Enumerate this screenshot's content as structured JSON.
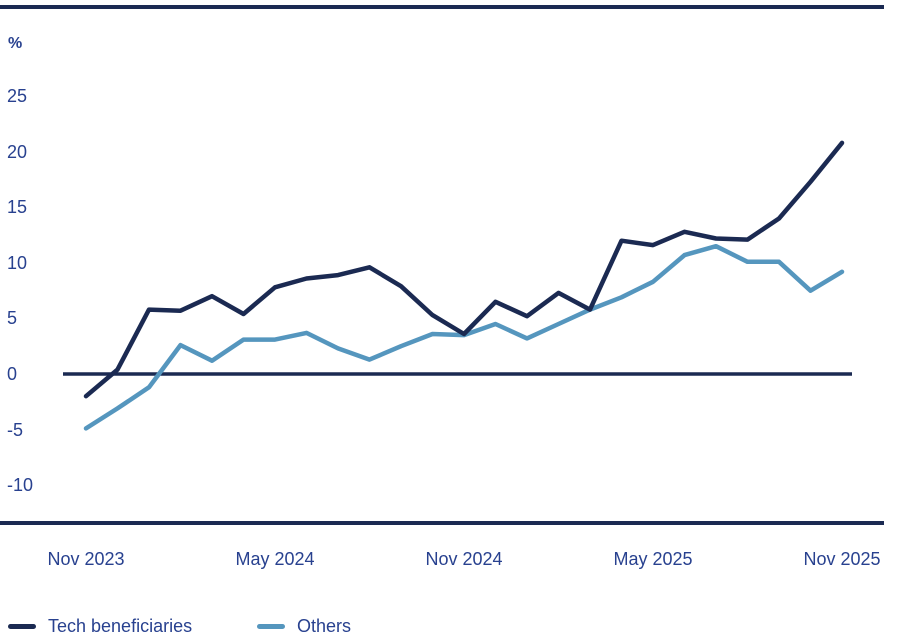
{
  "colors": {
    "navy": "#1b2a52",
    "light_blue": "#5596be",
    "text": "#28418f",
    "background": "#ffffff"
  },
  "chart_data": {
    "type": "line",
    "title": "",
    "y_unit": "%",
    "ylim": [
      -10,
      25
    ],
    "y_ticks": [
      25,
      20,
      15,
      10,
      5,
      0,
      -5,
      -10
    ],
    "zero_baseline": 0,
    "grid": "off",
    "legend_position": "bottom-left",
    "months": [
      "Nov 2023",
      "Dec 2023",
      "Jan 2024",
      "Feb 2024",
      "Mar 2024",
      "Apr 2024",
      "May 2024",
      "Jun 2024",
      "Jul 2024",
      "Aug 2024",
      "Sep 2024",
      "Oct 2024",
      "Nov 2024",
      "Dec 2024",
      "Jan 2025",
      "Feb 2025",
      "Mar 2025",
      "Apr 2025",
      "May 2025",
      "Jun 2025",
      "Jul 2025",
      "Aug 2025",
      "Sep 2025",
      "Oct 2025",
      "Nov 2025"
    ],
    "x_ticks": [
      {
        "label": "Nov 2023",
        "month_index": 0
      },
      {
        "label": "May 2024",
        "month_index": 6
      },
      {
        "label": "Nov 2024",
        "month_index": 12
      },
      {
        "label": "May 2025",
        "month_index": 18
      },
      {
        "label": "Nov 2025",
        "month_index": 24
      }
    ],
    "series": [
      {
        "name": "Tech beneficiaries",
        "color": "#1b2a52",
        "values": [
          -2.0,
          0.4,
          5.8,
          5.7,
          7.0,
          5.4,
          7.8,
          8.6,
          8.9,
          9.6,
          7.9,
          5.3,
          3.6,
          6.5,
          5.2,
          7.3,
          5.8,
          12.0,
          11.6,
          12.8,
          12.2,
          12.1,
          14.0,
          17.3,
          20.8
        ]
      },
      {
        "name": "Others",
        "color": "#5596be",
        "values": [
          -4.9,
          -3.1,
          -1.2,
          2.6,
          1.2,
          3.1,
          3.1,
          3.7,
          2.3,
          1.3,
          2.5,
          3.6,
          3.5,
          4.5,
          3.2,
          4.5,
          5.8,
          6.9,
          8.3,
          10.7,
          11.5,
          10.1,
          10.1,
          7.5,
          9.2
        ]
      }
    ]
  },
  "legend": {
    "items": [
      {
        "label": "Tech beneficiaries"
      },
      {
        "label": "Others"
      }
    ]
  }
}
